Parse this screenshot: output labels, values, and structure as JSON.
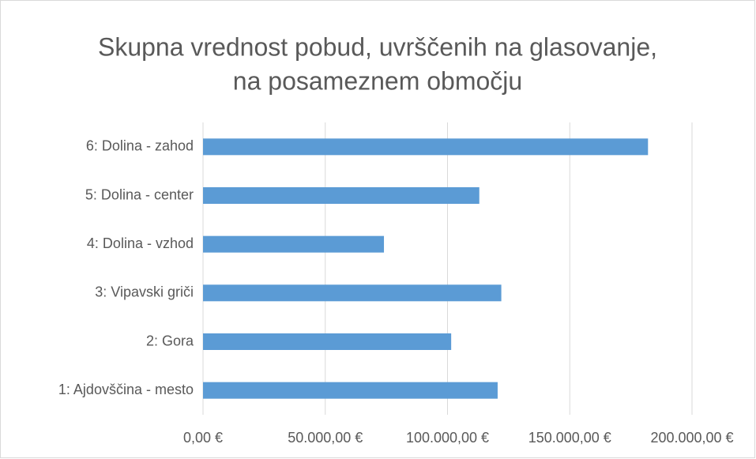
{
  "chart_data": {
    "type": "bar",
    "orientation": "horizontal",
    "title": [
      "Skupna vrednost pobud, uvrščenih na glasovanje,",
      "na posameznem območju"
    ],
    "categories": [
      "1: Ajdovščina - mesto",
      "2: Gora",
      "3: Vipavski griči",
      "4: Dolina - vzhod",
      "5: Dolina - center",
      "6: Dolina - zahod"
    ],
    "values": [
      120500,
      101500,
      122000,
      74000,
      113000,
      182000
    ],
    "color": "#5b9bd5",
    "xlim": [
      0,
      200000
    ],
    "xticks": [
      {
        "value": 0,
        "label": "0,00 €"
      },
      {
        "value": 50000,
        "label": "50.000,00 €"
      },
      {
        "value": 100000,
        "label": "100.000,00 €"
      },
      {
        "value": 150000,
        "label": "150.000,00 €"
      },
      {
        "value": 200000,
        "label": "200.000,00 €"
      }
    ],
    "grid": true
  }
}
